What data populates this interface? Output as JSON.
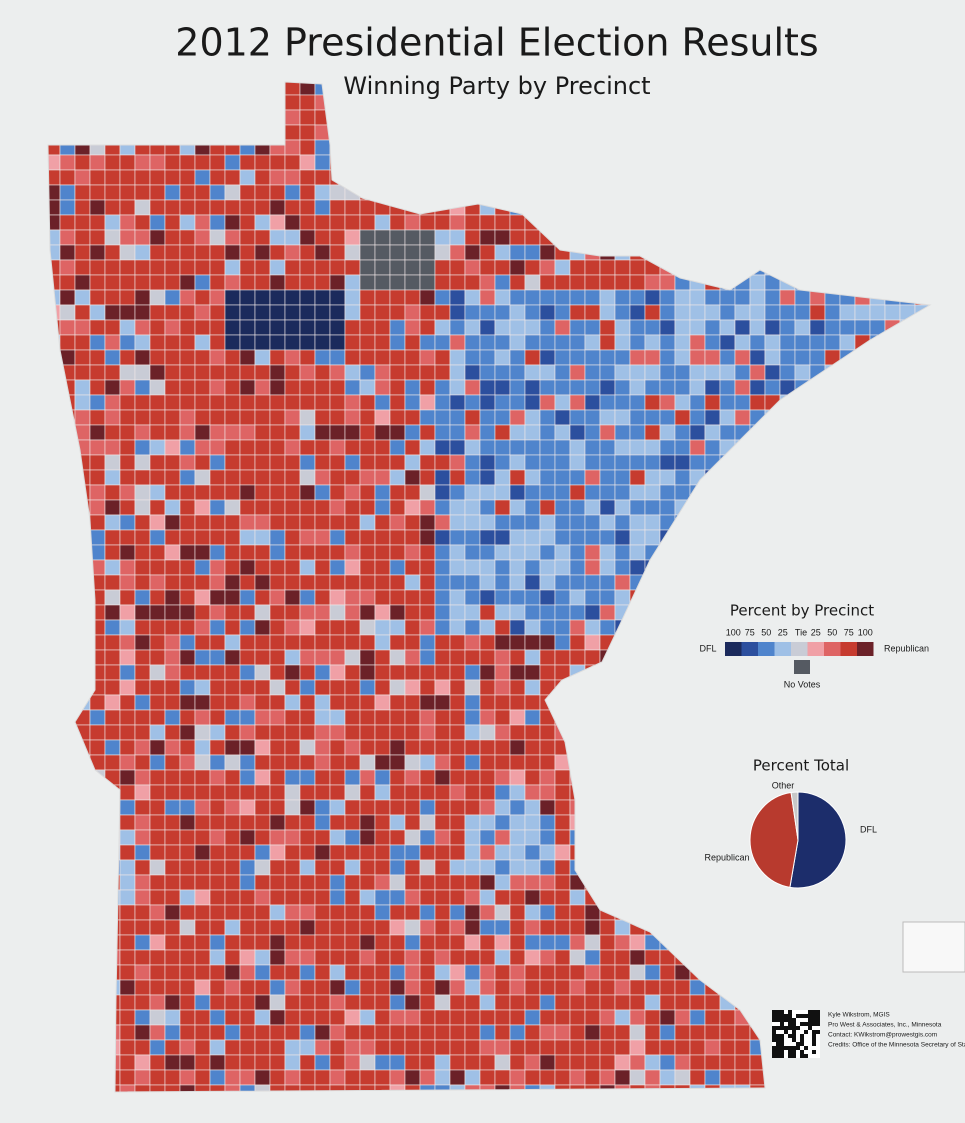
{
  "header": {
    "title": "2012 Presidential Election Results",
    "subtitle": "Winning Party by Precinct"
  },
  "legend": {
    "title": "Percent by Precinct",
    "dfl_label": "DFL",
    "rep_label": "Republican",
    "tie_label": "Tie",
    "no_votes_label": "No Votes",
    "dfl_steps": [
      100,
      75,
      50,
      25
    ],
    "rep_steps": [
      25,
      50,
      75,
      100
    ],
    "dfl_colors": [
      "#1b2a5c",
      "#2c4f9e",
      "#4f84cc",
      "#9fc0e6"
    ],
    "tie_color": "#c9ccd6",
    "rep_colors": [
      "#f0a0a6",
      "#de6464",
      "#c63b2f",
      "#6b2128"
    ],
    "no_votes_color": "#555a62"
  },
  "pie": {
    "type": "pie",
    "title": "Percent Total",
    "categories": [
      "DFL",
      "Republican",
      "Other"
    ],
    "values": [
      52.7,
      45,
      2.3
    ],
    "colors": [
      "#1c2d6b",
      "#b83a2e",
      "#c8c8c8"
    ]
  },
  "credits": {
    "lines": [
      "Kyle Wikstrom, MGIS",
      "Pro West & Associates, Inc., Minnesota",
      "Contact: KWikstrom@prowestgis.com",
      "Credits: Office of the Minnesota Secretary of State"
    ]
  }
}
